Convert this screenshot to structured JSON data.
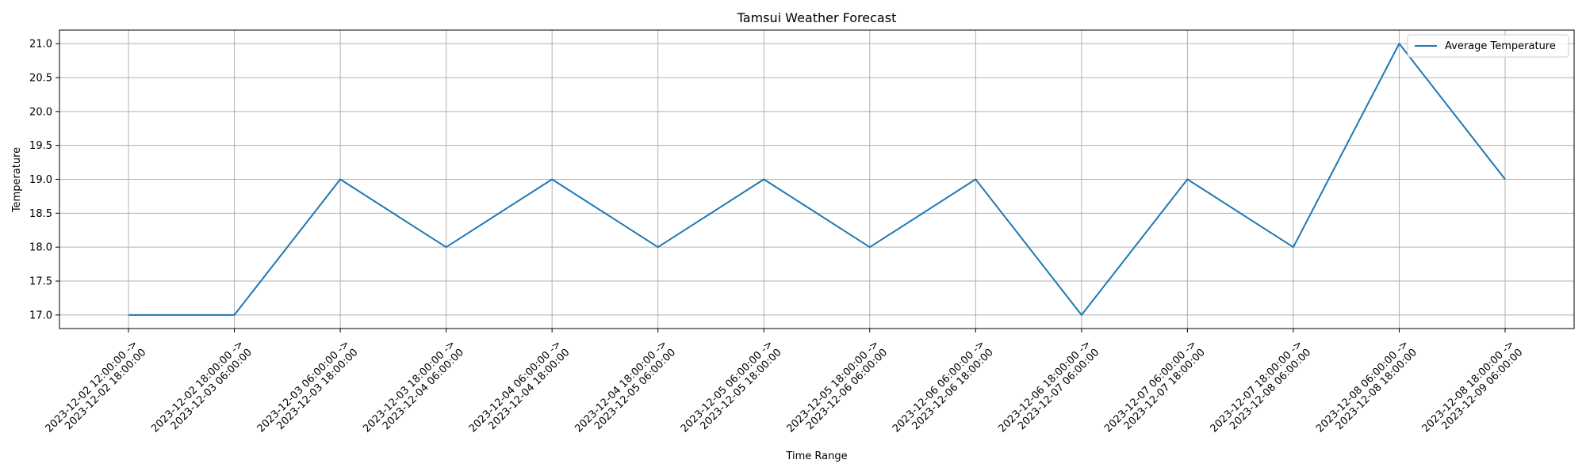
{
  "chart_data": {
    "type": "line",
    "title": "Tamsui Weather Forecast",
    "xlabel": "Time Range",
    "ylabel": "Temperature",
    "ylim": [
      16.8,
      21.2
    ],
    "yticks": [
      17.0,
      17.5,
      18.0,
      18.5,
      19.0,
      19.5,
      20.0,
      20.5,
      21.0
    ],
    "grid": true,
    "legend_position": "top-right",
    "categories": [
      [
        "2023-12-02 12:00:00 ->",
        "2023-12-02 18:00:00"
      ],
      [
        "2023-12-02 18:00:00 ->",
        "2023-12-03 06:00:00"
      ],
      [
        "2023-12-03 06:00:00 ->",
        "2023-12-03 18:00:00"
      ],
      [
        "2023-12-03 18:00:00 ->",
        "2023-12-04 06:00:00"
      ],
      [
        "2023-12-04 06:00:00 ->",
        "2023-12-04 18:00:00"
      ],
      [
        "2023-12-04 18:00:00 ->",
        "2023-12-05 06:00:00"
      ],
      [
        "2023-12-05 06:00:00 ->",
        "2023-12-05 18:00:00"
      ],
      [
        "2023-12-05 18:00:00 ->",
        "2023-12-06 06:00:00"
      ],
      [
        "2023-12-06 06:00:00 ->",
        "2023-12-06 18:00:00"
      ],
      [
        "2023-12-06 18:00:00 ->",
        "2023-12-07 06:00:00"
      ],
      [
        "2023-12-07 06:00:00 ->",
        "2023-12-07 18:00:00"
      ],
      [
        "2023-12-07 18:00:00 ->",
        "2023-12-08 06:00:00"
      ],
      [
        "2023-12-08 06:00:00 ->",
        "2023-12-08 18:00:00"
      ],
      [
        "2023-12-08 18:00:00 ->",
        "2023-12-09 06:00:00"
      ]
    ],
    "series": [
      {
        "name": "Average Temperature",
        "color": "#1f77b4",
        "values": [
          17,
          17,
          19,
          18,
          19,
          18,
          19,
          18,
          19,
          17,
          19,
          18,
          21,
          19
        ]
      }
    ]
  }
}
